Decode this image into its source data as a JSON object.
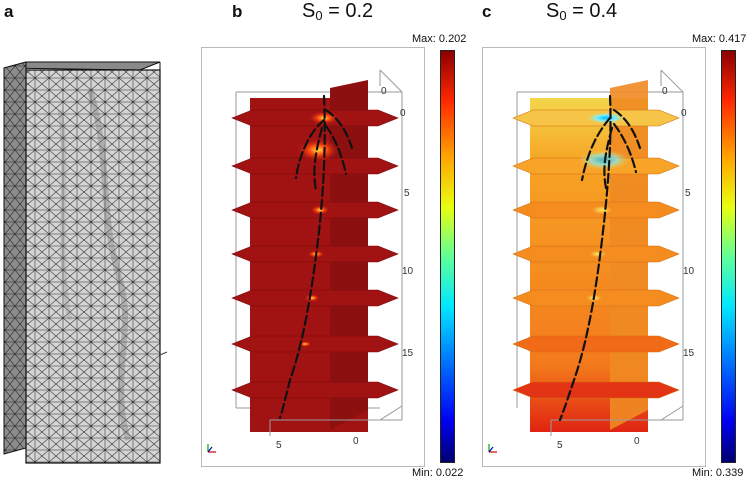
{
  "panels": [
    {
      "id": "a",
      "label": "a",
      "title_base": "",
      "title_sub": "",
      "title_rest": ""
    },
    {
      "id": "b",
      "label": "b",
      "title_base": "S",
      "title_sub": "0",
      "title_rest": " = 0.2",
      "max_label": "Max: 0.202",
      "min_label": "Min: 0.022",
      "axis_ticks": {
        "depth": [
          "0",
          "5",
          "10",
          "15"
        ],
        "top_edge": "0",
        "bottom_edge": [
          "5",
          "0"
        ]
      }
    },
    {
      "id": "c",
      "label": "c",
      "title_base": "S",
      "title_sub": "0",
      "title_rest": " = 0.4",
      "max_label": "Max: 0.417",
      "min_label": "Min: 0.339",
      "axis_ticks": {
        "depth": [
          "0",
          "5",
          "10",
          "15"
        ],
        "top_edge": "0",
        "bottom_edge": [
          "5",
          "0"
        ]
      }
    }
  ],
  "colors": {
    "panel_b_field": "#a11212",
    "panel_c_field": "#f58c1f",
    "root": "#111111",
    "mesh_dark": "#202020",
    "mesh_light": "#cfcfcf"
  }
}
